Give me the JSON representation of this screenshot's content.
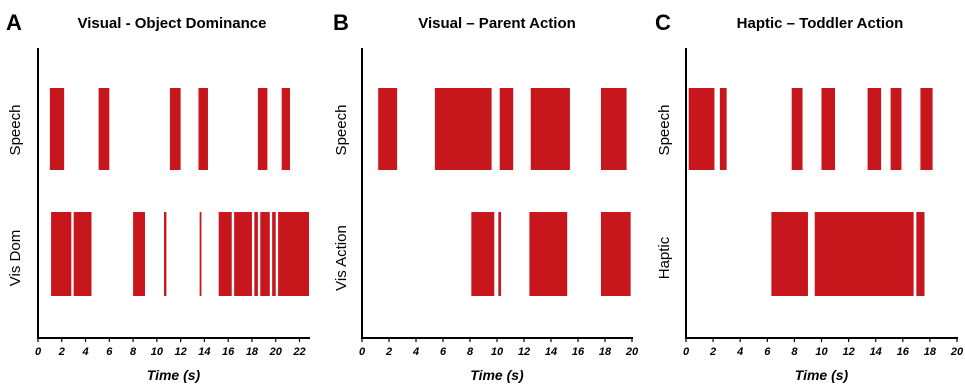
{
  "chart_data": [
    {
      "type": "timeline",
      "letter": "A",
      "title": "Visual - Object Dominance",
      "xlabel": "Time (s)",
      "xlim": [
        0,
        22.8
      ],
      "xticks": [
        0,
        2,
        4,
        6,
        8,
        10,
        12,
        14,
        16,
        18,
        20,
        22
      ],
      "rows": [
        {
          "label": "Speech",
          "intervals": [
            [
              1.0,
              2.2
            ],
            [
              5.1,
              6.0
            ],
            [
              11.1,
              12.0
            ],
            [
              13.5,
              14.3
            ],
            [
              18.5,
              19.3
            ],
            [
              20.5,
              21.2
            ]
          ]
        },
        {
          "label": "Vis Dom",
          "intervals": [
            [
              1.1,
              2.8
            ],
            [
              3.0,
              4.5
            ],
            [
              8.0,
              9.0
            ],
            [
              10.6,
              10.8
            ],
            [
              13.6,
              13.75
            ],
            [
              15.2,
              16.3
            ],
            [
              16.5,
              18.0
            ],
            [
              18.2,
              18.5
            ],
            [
              18.7,
              19.5
            ],
            [
              19.7,
              20.0
            ],
            [
              20.2,
              22.8
            ]
          ]
        }
      ]
    },
    {
      "type": "timeline",
      "letter": "B",
      "title": "Visual – Parent Action",
      "xlabel": "Time (s)",
      "xlim": [
        0,
        20
      ],
      "xticks": [
        0,
        2,
        4,
        6,
        8,
        10,
        12,
        14,
        16,
        18,
        20
      ],
      "rows": [
        {
          "label": "Speech",
          "intervals": [
            [
              1.2,
              2.6
            ],
            [
              5.4,
              9.6
            ],
            [
              10.2,
              11.2
            ],
            [
              12.5,
              15.4
            ],
            [
              17.7,
              19.6
            ]
          ]
        },
        {
          "label": "Vis Action",
          "intervals": [
            [
              8.1,
              9.8
            ],
            [
              10.1,
              10.3
            ],
            [
              12.4,
              15.2
            ],
            [
              17.7,
              19.9
            ]
          ]
        }
      ]
    },
    {
      "type": "timeline",
      "letter": "C",
      "title": "Haptic – Toddler Action",
      "xlabel": "Time (s)",
      "xlim": [
        0,
        20
      ],
      "xticks": [
        0,
        2,
        4,
        6,
        8,
        10,
        12,
        14,
        16,
        18,
        20
      ],
      "rows": [
        {
          "label": "Speech",
          "intervals": [
            [
              0.2,
              2.1
            ],
            [
              2.5,
              3.0
            ],
            [
              7.8,
              8.6
            ],
            [
              10.0,
              11.0
            ],
            [
              13.4,
              14.4
            ],
            [
              15.1,
              15.9
            ],
            [
              17.3,
              18.2
            ]
          ]
        },
        {
          "label": "Haptic",
          "intervals": [
            [
              6.3,
              9.0
            ],
            [
              9.5,
              16.8
            ],
            [
              17.0,
              17.6
            ]
          ]
        }
      ]
    }
  ],
  "colors": {
    "bar": "#c8161d",
    "axis": "#000000"
  }
}
